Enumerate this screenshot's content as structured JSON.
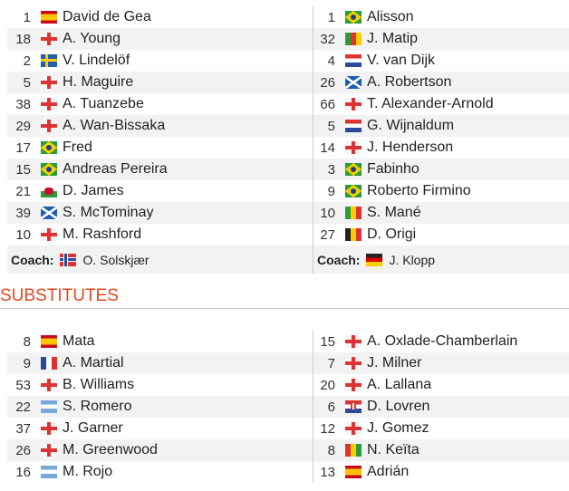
{
  "lineups": {
    "home": [
      {
        "num": "1",
        "flag": "esp",
        "name": "David de Gea"
      },
      {
        "num": "18",
        "flag": "eng",
        "name": "A. Young"
      },
      {
        "num": "2",
        "flag": "swe",
        "name": "V. Lindelöf"
      },
      {
        "num": "5",
        "flag": "eng",
        "name": "H. Maguire"
      },
      {
        "num": "38",
        "flag": "eng",
        "name": "A. Tuanzebe"
      },
      {
        "num": "29",
        "flag": "eng",
        "name": "A. Wan-Bissaka"
      },
      {
        "num": "17",
        "flag": "bra",
        "name": "Fred"
      },
      {
        "num": "15",
        "flag": "bra",
        "name": "Andreas Pereira"
      },
      {
        "num": "21",
        "flag": "wal",
        "name": "D. James"
      },
      {
        "num": "39",
        "flag": "sco",
        "name": "S. McTominay"
      },
      {
        "num": "10",
        "flag": "eng",
        "name": "M. Rashford"
      }
    ],
    "away": [
      {
        "num": "1",
        "flag": "bra",
        "name": "Alisson"
      },
      {
        "num": "32",
        "flag": "cmr",
        "name": "J. Matip"
      },
      {
        "num": "4",
        "flag": "ned",
        "name": "V. van Dijk"
      },
      {
        "num": "26",
        "flag": "sco",
        "name": "A. Robertson"
      },
      {
        "num": "66",
        "flag": "eng",
        "name": "T. Alexander-Arnold"
      },
      {
        "num": "5",
        "flag": "ned",
        "name": "G. Wijnaldum"
      },
      {
        "num": "14",
        "flag": "eng",
        "name": "J. Henderson"
      },
      {
        "num": "3",
        "flag": "bra",
        "name": "Fabinho"
      },
      {
        "num": "9",
        "flag": "bra",
        "name": "Roberto Firmino"
      },
      {
        "num": "10",
        "flag": "sen",
        "name": "S. Mané"
      },
      {
        "num": "27",
        "flag": "bel",
        "name": "D. Origi"
      }
    ]
  },
  "coaches": {
    "label": "Coach:",
    "home": {
      "flag": "nor",
      "name": "O. Solskjær"
    },
    "away": {
      "flag": "ger",
      "name": "J. Klopp"
    }
  },
  "substitutes": {
    "title": "SUBSTITUTES",
    "home": [
      {
        "num": "8",
        "flag": "esp",
        "name": "Mata"
      },
      {
        "num": "9",
        "flag": "fra",
        "name": "A. Martial"
      },
      {
        "num": "53",
        "flag": "eng",
        "name": "B. Williams"
      },
      {
        "num": "22",
        "flag": "arg",
        "name": "S. Romero"
      },
      {
        "num": "37",
        "flag": "eng",
        "name": "J. Garner"
      },
      {
        "num": "26",
        "flag": "eng",
        "name": "M. Greenwood"
      },
      {
        "num": "16",
        "flag": "arg",
        "name": "M. Rojo"
      }
    ],
    "away": [
      {
        "num": "15",
        "flag": "eng",
        "name": "A. Oxlade-Chamberlain"
      },
      {
        "num": "7",
        "flag": "eng",
        "name": "J. Milner"
      },
      {
        "num": "20",
        "flag": "eng",
        "name": "A. Lallana"
      },
      {
        "num": "6",
        "flag": "cro",
        "name": "D. Lovren"
      },
      {
        "num": "12",
        "flag": "eng",
        "name": "J. Gomez"
      },
      {
        "num": "8",
        "flag": "gui",
        "name": "N. Keïta"
      },
      {
        "num": "13",
        "flag": "esp",
        "name": "Adrián"
      }
    ]
  },
  "colors": {
    "accent": "#e8461c",
    "row_alt": "#f2f2f2"
  }
}
